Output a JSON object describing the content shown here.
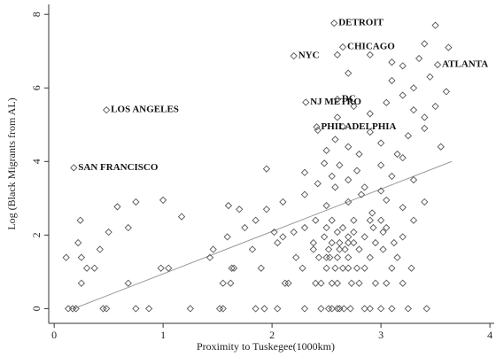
{
  "chart_data": {
    "type": "scatter",
    "xlabel": "Proximity to Tuskegee(1000km)",
    "ylabel": "Log (Black Migrants from AL)",
    "xlim": [
      -0.05,
      4.04
    ],
    "ylim": [
      -0.4,
      8.27
    ],
    "xticks": [
      0,
      1,
      2,
      3,
      4
    ],
    "yticks": [
      0,
      2,
      4,
      6,
      8
    ],
    "marker_color": "#555555",
    "line_color": "#999999",
    "series": [
      {
        "x": [
          0.13,
          0.17,
          0.2,
          0.45,
          0.48,
          0.75,
          0.87,
          1.25,
          1.52,
          1.55,
          1.85,
          1.93,
          2.05,
          2.3,
          2.45,
          2.52,
          2.55,
          2.6,
          2.62,
          2.66,
          2.72,
          2.85,
          2.9,
          3.0,
          3.1,
          3.25,
          3.42,
          0.25,
          0.68,
          1.55,
          1.62,
          2.12,
          2.15,
          2.4,
          2.45,
          2.55,
          2.6,
          2.73,
          2.8,
          2.95,
          3.05,
          3.2,
          0.3,
          0.37,
          0.98,
          1.05,
          1.63,
          1.65,
          1.9,
          2.28,
          2.5,
          2.58,
          2.65,
          2.7,
          2.78,
          2.85,
          3.1,
          3.28,
          0.11,
          0.25,
          1.43,
          2.22,
          2.43,
          2.5,
          2.53,
          2.6,
          2.7,
          2.9,
          3.15,
          0.42,
          1.46,
          1.82,
          2.38,
          2.52,
          2.62,
          2.67,
          2.8,
          3.02,
          0.22,
          2.05,
          2.38,
          2.55,
          2.62,
          2.7,
          2.75,
          2.95,
          3.12,
          1.59,
          2.1,
          2.48,
          2.7,
          2.85,
          3.2,
          0.5,
          2.02,
          2.2,
          2.6,
          2.75,
          3.02,
          0.68,
          1.75,
          2.3,
          2.5,
          2.65,
          2.93,
          3.05,
          0.24,
          1.85,
          2.4,
          2.55,
          2.75,
          2.9,
          3.0,
          3.3,
          1.0,
          0.58,
          1.17,
          0.75,
          1.6,
          1.7,
          1.95,
          2.1,
          2.3,
          2.5,
          2.58,
          2.7,
          2.82,
          2.92,
          3.05,
          3.2,
          3.4,
          3.0,
          1.95,
          2.42,
          2.55,
          2.62,
          2.7,
          2.78,
          2.85,
          3.0,
          3.1,
          3.2,
          3.3,
          2.48,
          2.3,
          2.5,
          2.58,
          2.7,
          2.8,
          2.9,
          3.0,
          3.15,
          3.25,
          3.4,
          3.55,
          2.42,
          2.65,
          2.6,
          2.75,
          2.9,
          3.05,
          3.2,
          3.3,
          3.4,
          3.5,
          3.6,
          3.45,
          3.3,
          2.7,
          2.9,
          3.1,
          3.2,
          3.35,
          3.4,
          3.5,
          3.62,
          2.6,
          3.1
        ],
        "values": [
          0,
          0,
          0,
          0,
          0,
          0,
          0,
          0,
          0,
          0,
          0,
          0,
          0,
          0,
          0,
          0,
          0,
          0,
          0,
          0,
          0,
          0,
          0,
          0,
          0,
          0,
          0,
          0.69,
          0.69,
          0.69,
          0.69,
          0.69,
          0.69,
          0.69,
          0.69,
          0.69,
          0.69,
          0.69,
          0.69,
          0.69,
          0.69,
          0.69,
          1.1,
          1.1,
          1.1,
          1.1,
          1.1,
          1.1,
          1.1,
          1.1,
          1.1,
          1.1,
          1.1,
          1.1,
          1.1,
          1.1,
          1.1,
          1.1,
          1.39,
          1.39,
          1.39,
          1.39,
          1.39,
          1.39,
          1.39,
          1.39,
          1.39,
          1.39,
          1.39,
          1.61,
          1.61,
          1.61,
          1.61,
          1.61,
          1.61,
          1.61,
          1.61,
          1.61,
          1.79,
          1.79,
          1.79,
          1.79,
          1.79,
          1.79,
          1.79,
          1.79,
          1.79,
          1.95,
          1.95,
          1.95,
          1.95,
          1.95,
          1.95,
          2.08,
          2.08,
          2.08,
          2.08,
          2.08,
          2.08,
          2.2,
          2.2,
          2.2,
          2.2,
          2.2,
          2.2,
          2.2,
          2.4,
          2.4,
          2.4,
          2.4,
          2.4,
          2.4,
          2.4,
          2.4,
          2.95,
          2.77,
          2.5,
          2.9,
          2.8,
          2.7,
          2.7,
          2.9,
          3.1,
          2.8,
          3.3,
          2.9,
          3.1,
          2.6,
          2.95,
          2.75,
          2.9,
          3.2,
          3.8,
          3.4,
          3.6,
          3.9,
          3.5,
          3.75,
          3.3,
          3.9,
          3.6,
          4.1,
          3.5,
          3.95,
          3.7,
          4.3,
          4.6,
          4.4,
          4.2,
          4.8,
          4.5,
          4.2,
          4.7,
          4.9,
          4.4,
          4.85,
          4.95,
          5.2,
          5.5,
          5.3,
          5.6,
          5.8,
          5.4,
          5.2,
          5.5,
          5.9,
          6.3,
          6.0,
          6.4,
          6.9,
          6.2,
          6.6,
          6.8,
          7.2,
          7.7,
          7.1,
          6.9,
          6.7
        ]
      }
    ],
    "annotations": [
      {
        "text": "DETROIT",
        "x": 2.57,
        "y": 7.76
      },
      {
        "text": "CHICAGO",
        "x": 2.65,
        "y": 7.11
      },
      {
        "text": "NYC",
        "x": 2.2,
        "y": 6.87
      },
      {
        "text": "ATLANTA",
        "x": 3.52,
        "y": 6.63
      },
      {
        "text": "NJ METRO",
        "x": 2.31,
        "y": 5.61
      },
      {
        "text": "DC",
        "x": 2.6,
        "y": 5.69
      },
      {
        "text": "PHILADELPHIA",
        "x": 2.41,
        "y": 4.94
      },
      {
        "text": "LOS ANGELES",
        "x": 0.48,
        "y": 5.4
      },
      {
        "text": "SAN FRANCISCO",
        "x": 0.18,
        "y": 3.83
      }
    ],
    "trend_line": {
      "x": [
        0.18,
        3.65
      ],
      "y": [
        0,
        4.0
      ]
    }
  }
}
